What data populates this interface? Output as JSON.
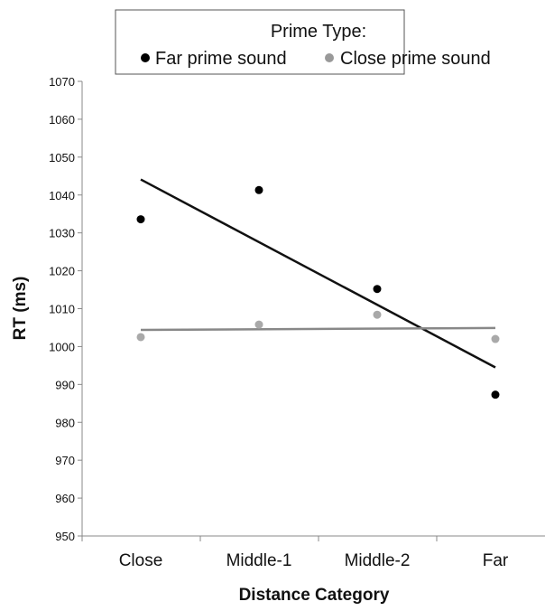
{
  "chart_data": {
    "type": "scatter",
    "title": "",
    "xlabel": "Distance Category",
    "ylabel": "RT (ms)",
    "categories": [
      "Close",
      "Middle-1",
      "Middle-2",
      "Far"
    ],
    "ylim": [
      950,
      1070
    ],
    "yticks": [
      950,
      960,
      970,
      980,
      990,
      1000,
      1010,
      1020,
      1030,
      1040,
      1050,
      1060,
      1070
    ],
    "grid": false,
    "legend": {
      "title": "Prime Type:",
      "placement": "top"
    },
    "series": [
      {
        "name": "Far prime sound",
        "color": "#000000",
        "values": [
          1033.6,
          1041.3,
          1015.2,
          987.3
        ],
        "trendline": {
          "start": 1044.1,
          "end": 994.5
        }
      },
      {
        "name": "Close prime sound",
        "color": "#999999",
        "values": [
          1002.5,
          1005.8,
          1008.4,
          1002.0
        ],
        "trendline": {
          "start": 1004.4,
          "end": 1004.9
        }
      }
    ]
  }
}
